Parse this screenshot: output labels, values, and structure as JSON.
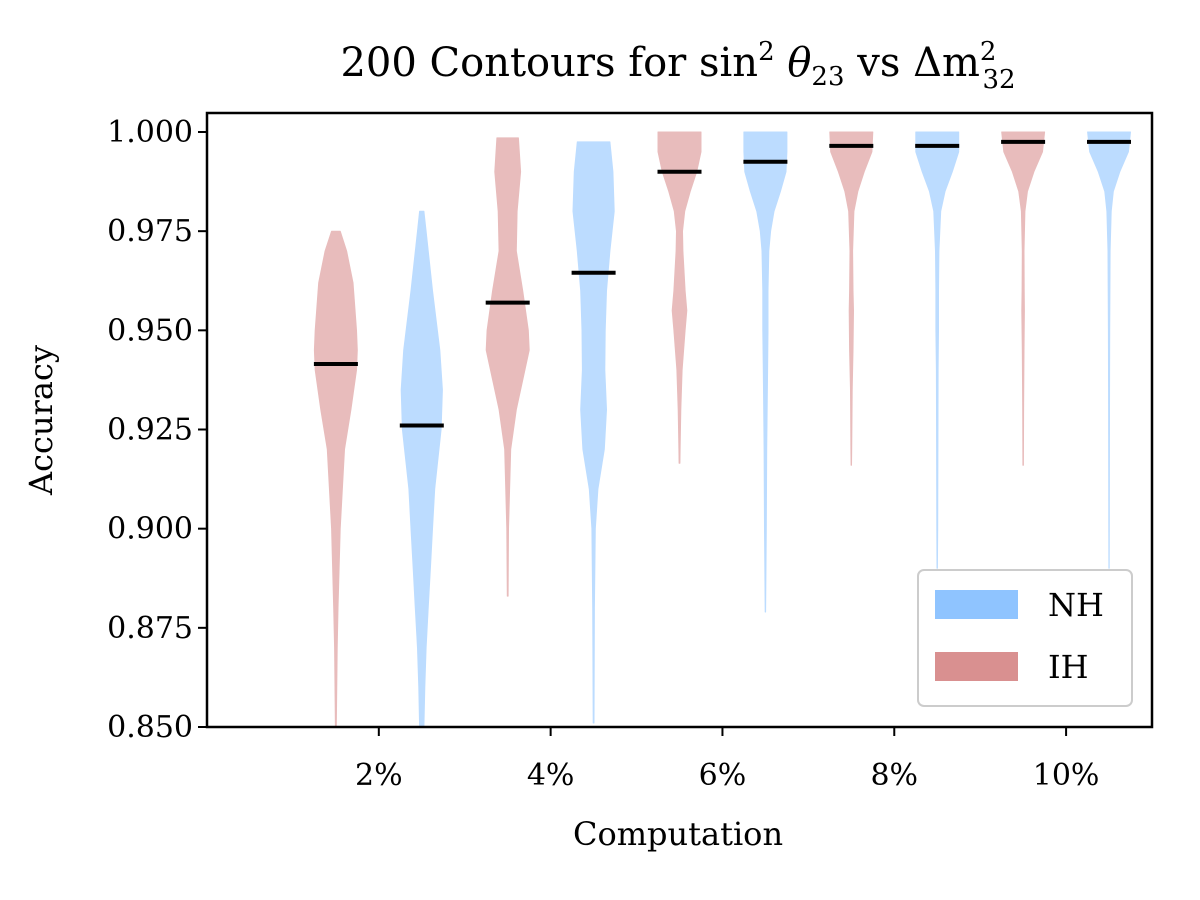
{
  "chart_data": {
    "type": "violin",
    "title_parts": {
      "prefix": "200 Contours for sin",
      "sup1": "2",
      "theta": " θ",
      "sub1": "23",
      "mid": " vs Δm",
      "sup2": "2",
      "sub2": "32"
    },
    "xlabel": "Computation",
    "ylabel": "Accuracy",
    "ylim": [
      0.85,
      1.0
    ],
    "xlim": [
      0,
      11
    ],
    "y_ticks": [
      "0.850",
      "0.875",
      "0.900",
      "0.925",
      "0.950",
      "0.975",
      "1.000"
    ],
    "x_ticks": [
      {
        "value": 2,
        "label": "2%"
      },
      {
        "value": 4,
        "label": "4%"
      },
      {
        "value": 6,
        "label": "6%"
      },
      {
        "value": 8,
        "label": "8%"
      },
      {
        "value": 10,
        "label": "10%"
      }
    ],
    "legend": {
      "position": "lower-right",
      "entries": [
        {
          "name": "NH",
          "color": "#8fc4ff"
        },
        {
          "name": "IH",
          "color": "#d99090"
        }
      ]
    },
    "series_colors": {
      "NH": "#bcdcff",
      "IH": "#e8bcbc"
    },
    "violins": [
      {
        "x": 1.5,
        "group": "IH",
        "median": 0.9415,
        "profile": [
          [
            0.975,
            0.1
          ],
          [
            0.97,
            0.25
          ],
          [
            0.962,
            0.4
          ],
          [
            0.95,
            0.48
          ],
          [
            0.945,
            0.5
          ],
          [
            0.94,
            0.48
          ],
          [
            0.93,
            0.35
          ],
          [
            0.92,
            0.2
          ],
          [
            0.9,
            0.1
          ],
          [
            0.88,
            0.05
          ],
          [
            0.87,
            0.03
          ],
          [
            0.85,
            0.01
          ]
        ]
      },
      {
        "x": 2.5,
        "group": "NH",
        "median": 0.926,
        "profile": [
          [
            0.98,
            0.05
          ],
          [
            0.975,
            0.1
          ],
          [
            0.96,
            0.25
          ],
          [
            0.945,
            0.42
          ],
          [
            0.935,
            0.48
          ],
          [
            0.925,
            0.45
          ],
          [
            0.91,
            0.3
          ],
          [
            0.9,
            0.25
          ],
          [
            0.89,
            0.2
          ],
          [
            0.88,
            0.15
          ],
          [
            0.87,
            0.1
          ],
          [
            0.86,
            0.07
          ],
          [
            0.85,
            0.05
          ]
        ]
      },
      {
        "x": 3.5,
        "group": "IH",
        "median": 0.957,
        "profile": [
          [
            0.9985,
            0.25
          ],
          [
            0.99,
            0.3
          ],
          [
            0.98,
            0.22
          ],
          [
            0.97,
            0.2
          ],
          [
            0.96,
            0.35
          ],
          [
            0.95,
            0.48
          ],
          [
            0.945,
            0.5
          ],
          [
            0.94,
            0.4
          ],
          [
            0.93,
            0.2
          ],
          [
            0.92,
            0.07
          ],
          [
            0.9,
            0.02
          ],
          [
            0.883,
            0.01
          ]
        ]
      },
      {
        "x": 4.5,
        "group": "NH",
        "median": 0.9645,
        "profile": [
          [
            0.9975,
            0.38
          ],
          [
            0.99,
            0.45
          ],
          [
            0.98,
            0.48
          ],
          [
            0.97,
            0.38
          ],
          [
            0.96,
            0.3
          ],
          [
            0.95,
            0.27
          ],
          [
            0.94,
            0.26
          ],
          [
            0.93,
            0.3
          ],
          [
            0.92,
            0.25
          ],
          [
            0.91,
            0.1
          ],
          [
            0.9,
            0.04
          ],
          [
            0.88,
            0.02
          ],
          [
            0.851,
            0.01
          ]
        ]
      },
      {
        "x": 5.5,
        "group": "IH",
        "median": 0.99,
        "profile": [
          [
            1.0,
            0.5
          ],
          [
            0.995,
            0.5
          ],
          [
            0.99,
            0.4
          ],
          [
            0.985,
            0.25
          ],
          [
            0.98,
            0.12
          ],
          [
            0.975,
            0.07
          ],
          [
            0.97,
            0.08
          ],
          [
            0.96,
            0.13
          ],
          [
            0.955,
            0.17
          ],
          [
            0.95,
            0.13
          ],
          [
            0.94,
            0.06
          ],
          [
            0.93,
            0.03
          ],
          [
            0.92,
            0.015
          ],
          [
            0.9165,
            0.01
          ]
        ]
      },
      {
        "x": 6.5,
        "group": "NH",
        "median": 0.9925,
        "profile": [
          [
            1.0,
            0.5
          ],
          [
            0.995,
            0.5
          ],
          [
            0.99,
            0.48
          ],
          [
            0.985,
            0.35
          ],
          [
            0.98,
            0.2
          ],
          [
            0.975,
            0.12
          ],
          [
            0.97,
            0.08
          ],
          [
            0.96,
            0.06
          ],
          [
            0.95,
            0.06
          ],
          [
            0.94,
            0.05
          ],
          [
            0.92,
            0.03
          ],
          [
            0.9,
            0.02
          ],
          [
            0.879,
            0.005
          ]
        ]
      },
      {
        "x": 7.5,
        "group": "IH",
        "median": 0.9965,
        "profile": [
          [
            1.0,
            0.5
          ],
          [
            0.995,
            0.48
          ],
          [
            0.99,
            0.3
          ],
          [
            0.985,
            0.15
          ],
          [
            0.98,
            0.06
          ],
          [
            0.97,
            0.03
          ],
          [
            0.96,
            0.04
          ],
          [
            0.955,
            0.05
          ],
          [
            0.945,
            0.04
          ],
          [
            0.935,
            0.02
          ],
          [
            0.92,
            0.01
          ],
          [
            0.916,
            0.005
          ]
        ]
      },
      {
        "x": 8.5,
        "group": "NH",
        "median": 0.9965,
        "profile": [
          [
            1.0,
            0.5
          ],
          [
            0.995,
            0.5
          ],
          [
            0.99,
            0.35
          ],
          [
            0.985,
            0.18
          ],
          [
            0.98,
            0.08
          ],
          [
            0.97,
            0.04
          ],
          [
            0.96,
            0.03
          ],
          [
            0.95,
            0.03
          ],
          [
            0.94,
            0.02
          ],
          [
            0.92,
            0.015
          ],
          [
            0.9,
            0.01
          ],
          [
            0.89,
            0.005
          ]
        ]
      },
      {
        "x": 9.5,
        "group": "IH",
        "median": 0.9975,
        "profile": [
          [
            1.0,
            0.5
          ],
          [
            0.995,
            0.45
          ],
          [
            0.99,
            0.25
          ],
          [
            0.985,
            0.1
          ],
          [
            0.98,
            0.04
          ],
          [
            0.97,
            0.02
          ],
          [
            0.96,
            0.025
          ],
          [
            0.955,
            0.03
          ],
          [
            0.945,
            0.02
          ],
          [
            0.93,
            0.01
          ],
          [
            0.916,
            0.005
          ]
        ]
      },
      {
        "x": 10.5,
        "group": "NH",
        "median": 0.9975,
        "profile": [
          [
            1.0,
            0.5
          ],
          [
            0.995,
            0.45
          ],
          [
            0.99,
            0.25
          ],
          [
            0.985,
            0.1
          ],
          [
            0.98,
            0.05
          ],
          [
            0.97,
            0.025
          ],
          [
            0.96,
            0.02
          ],
          [
            0.95,
            0.015
          ],
          [
            0.93,
            0.01
          ],
          [
            0.9,
            0.005
          ],
          [
            0.89,
            0.003
          ]
        ]
      }
    ]
  }
}
